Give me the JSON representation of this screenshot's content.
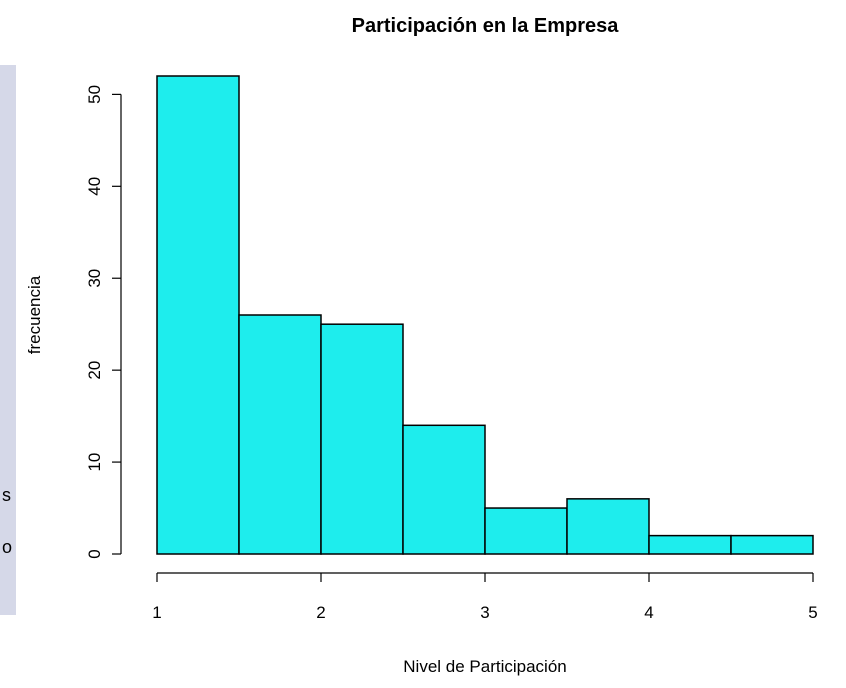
{
  "background_panel": {
    "fragments": [
      "s",
      "o"
    ],
    "color": "#d5d8e8"
  },
  "chart_data": {
    "type": "bar",
    "title": "Participación en la Empresa",
    "xlabel": "Nivel de Participación",
    "ylabel": "frecuencia",
    "bins": [
      {
        "x0": 1.0,
        "x1": 1.5,
        "count": 52
      },
      {
        "x0": 1.5,
        "x1": 2.0,
        "count": 26
      },
      {
        "x0": 2.0,
        "x1": 2.5,
        "count": 25
      },
      {
        "x0": 2.5,
        "x1": 3.0,
        "count": 14
      },
      {
        "x0": 3.0,
        "x1": 3.5,
        "count": 5
      },
      {
        "x0": 3.5,
        "x1": 4.0,
        "count": 6
      },
      {
        "x0": 4.0,
        "x1": 4.5,
        "count": 2
      },
      {
        "x0": 4.5,
        "x1": 5.0,
        "count": 2
      }
    ],
    "xlim": [
      1,
      5
    ],
    "ylim": [
      0,
      52
    ],
    "xticks": [
      1,
      2,
      3,
      4,
      5
    ],
    "yticks": [
      0,
      10,
      20,
      30,
      40,
      50
    ],
    "bar_color": "#1eeded",
    "grid": false,
    "legend": "none"
  }
}
